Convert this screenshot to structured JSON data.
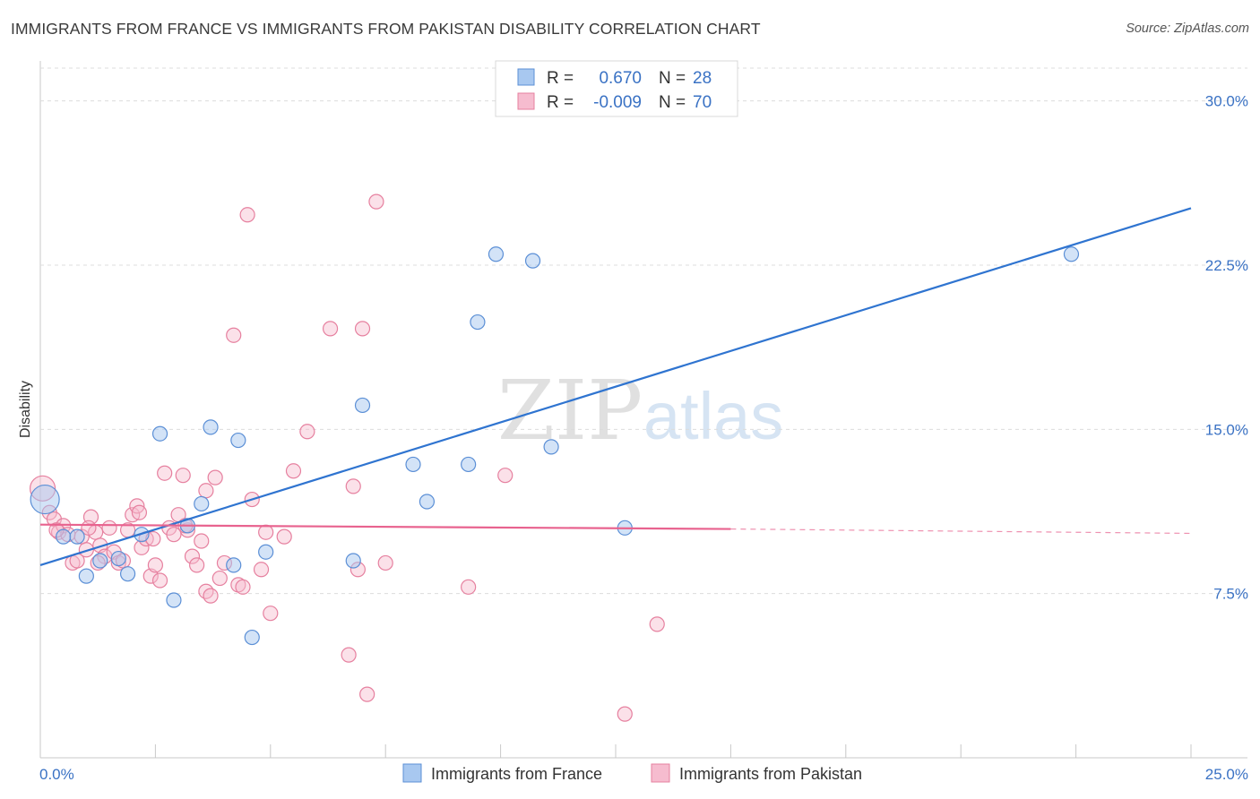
{
  "title": "IMMIGRANTS FROM FRANCE VS IMMIGRANTS FROM PAKISTAN DISABILITY CORRELATION CHART",
  "source": "Source: ZipAtlas.com",
  "watermark": {
    "zip": "ZIP",
    "atlas": "atlas"
  },
  "colors": {
    "france_fill": "#a8c8f0",
    "france_stroke": "#5b8fd6",
    "france_line": "#2f74d0",
    "pakistan_fill": "#f6bccf",
    "pakistan_stroke": "#e6809f",
    "pakistan_line": "#e8638f",
    "tick_text": "#3a72c4"
  },
  "legend": {
    "france": {
      "r_label": "R =",
      "r_value": "0.670",
      "n_label": "N =",
      "n_value": "28"
    },
    "pakistan": {
      "r_label": "R =",
      "r_value": "-0.009",
      "n_label": "N =",
      "n_value": "70"
    }
  },
  "chart_data": {
    "type": "scatter",
    "title": "IMMIGRANTS FROM FRANCE VS IMMIGRANTS FROM PAKISTAN DISABILITY CORRELATION CHART",
    "xlabel": "",
    "ylabel": "Disability",
    "xlim": [
      0,
      25
    ],
    "ylim": [
      0,
      31.5
    ],
    "x_tick_labels": [
      "0.0%",
      "25.0%"
    ],
    "y_ticks": [
      7.5,
      15.0,
      22.5,
      30.0
    ],
    "y_tick_labels": [
      "7.5%",
      "15.0%",
      "22.5%",
      "30.0%"
    ],
    "grid": true,
    "series": [
      {
        "name": "Immigrants from France",
        "r": 0.67,
        "n": 28,
        "trend": {
          "x": [
            0,
            25
          ],
          "y": [
            8.8,
            25.1
          ]
        },
        "points": [
          {
            "x": 0.1,
            "y": 11.8,
            "big": true
          },
          {
            "x": 0.5,
            "y": 10.1
          },
          {
            "x": 0.8,
            "y": 10.1
          },
          {
            "x": 1.0,
            "y": 8.3
          },
          {
            "x": 1.3,
            "y": 9.0
          },
          {
            "x": 1.7,
            "y": 9.1
          },
          {
            "x": 1.9,
            "y": 8.4
          },
          {
            "x": 2.2,
            "y": 10.2
          },
          {
            "x": 2.6,
            "y": 14.8
          },
          {
            "x": 2.9,
            "y": 7.2
          },
          {
            "x": 3.2,
            "y": 10.6
          },
          {
            "x": 3.5,
            "y": 11.6
          },
          {
            "x": 3.7,
            "y": 15.1
          },
          {
            "x": 4.2,
            "y": 8.8
          },
          {
            "x": 4.3,
            "y": 14.5
          },
          {
            "x": 4.6,
            "y": 5.5
          },
          {
            "x": 4.9,
            "y": 9.4
          },
          {
            "x": 6.8,
            "y": 9.0
          },
          {
            "x": 7.0,
            "y": 16.1
          },
          {
            "x": 8.1,
            "y": 13.4
          },
          {
            "x": 8.4,
            "y": 11.7
          },
          {
            "x": 9.3,
            "y": 13.4
          },
          {
            "x": 9.5,
            "y": 19.9
          },
          {
            "x": 9.9,
            "y": 23.0
          },
          {
            "x": 10.7,
            "y": 22.7
          },
          {
            "x": 11.1,
            "y": 14.2
          },
          {
            "x": 12.7,
            "y": 10.5
          },
          {
            "x": 22.4,
            "y": 23.0
          }
        ]
      },
      {
        "name": "Immigrants from Pakistan",
        "r": -0.009,
        "n": 70,
        "trend": {
          "x": [
            0,
            15
          ],
          "y": [
            10.65,
            10.45
          ]
        },
        "trend_dashed": {
          "x": [
            15,
            25
          ],
          "y": [
            10.45,
            10.25
          ]
        },
        "points": [
          {
            "x": 0.05,
            "y": 12.3,
            "big": true
          },
          {
            "x": 0.2,
            "y": 11.2
          },
          {
            "x": 0.3,
            "y": 10.9
          },
          {
            "x": 0.4,
            "y": 10.3
          },
          {
            "x": 0.5,
            "y": 10.6
          },
          {
            "x": 0.6,
            "y": 10.2
          },
          {
            "x": 0.7,
            "y": 8.9
          },
          {
            "x": 0.9,
            "y": 10.1
          },
          {
            "x": 1.0,
            "y": 9.5
          },
          {
            "x": 1.1,
            "y": 11.0
          },
          {
            "x": 1.2,
            "y": 10.3
          },
          {
            "x": 1.3,
            "y": 9.7
          },
          {
            "x": 1.4,
            "y": 9.2
          },
          {
            "x": 1.5,
            "y": 10.5
          },
          {
            "x": 1.6,
            "y": 9.4
          },
          {
            "x": 1.7,
            "y": 8.9
          },
          {
            "x": 1.8,
            "y": 9.0
          },
          {
            "x": 2.0,
            "y": 11.1
          },
          {
            "x": 2.1,
            "y": 11.5
          },
          {
            "x": 2.2,
            "y": 9.6
          },
          {
            "x": 2.3,
            "y": 10.0
          },
          {
            "x": 2.4,
            "y": 8.3
          },
          {
            "x": 2.5,
            "y": 8.8
          },
          {
            "x": 2.6,
            "y": 8.1
          },
          {
            "x": 2.7,
            "y": 13.0
          },
          {
            "x": 2.8,
            "y": 10.5
          },
          {
            "x": 2.9,
            "y": 10.2
          },
          {
            "x": 3.0,
            "y": 11.1
          },
          {
            "x": 3.1,
            "y": 12.9
          },
          {
            "x": 3.2,
            "y": 10.4
          },
          {
            "x": 3.3,
            "y": 9.2
          },
          {
            "x": 3.4,
            "y": 8.8
          },
          {
            "x": 3.5,
            "y": 9.9
          },
          {
            "x": 3.6,
            "y": 7.6
          },
          {
            "x": 3.7,
            "y": 7.4
          },
          {
            "x": 3.8,
            "y": 12.8
          },
          {
            "x": 3.9,
            "y": 8.2
          },
          {
            "x": 4.0,
            "y": 8.9
          },
          {
            "x": 4.2,
            "y": 19.3
          },
          {
            "x": 4.3,
            "y": 7.9
          },
          {
            "x": 4.4,
            "y": 7.8
          },
          {
            "x": 4.5,
            "y": 24.8
          },
          {
            "x": 4.6,
            "y": 11.8
          },
          {
            "x": 4.8,
            "y": 8.6
          },
          {
            "x": 4.9,
            "y": 10.3
          },
          {
            "x": 5.0,
            "y": 6.6
          },
          {
            "x": 5.3,
            "y": 10.1
          },
          {
            "x": 5.5,
            "y": 13.1
          },
          {
            "x": 5.8,
            "y": 14.9
          },
          {
            "x": 6.3,
            "y": 19.6
          },
          {
            "x": 6.7,
            "y": 4.7
          },
          {
            "x": 6.8,
            "y": 12.4
          },
          {
            "x": 6.9,
            "y": 8.6
          },
          {
            "x": 7.0,
            "y": 19.6
          },
          {
            "x": 7.1,
            "y": 2.9
          },
          {
            "x": 7.3,
            "y": 25.4
          },
          {
            "x": 7.5,
            "y": 8.9
          },
          {
            "x": 9.3,
            "y": 7.8
          },
          {
            "x": 10.1,
            "y": 12.9
          },
          {
            "x": 12.7,
            "y": 2.0
          },
          {
            "x": 13.4,
            "y": 6.1
          },
          {
            "x": 0.35,
            "y": 10.4
          },
          {
            "x": 1.25,
            "y": 8.9
          },
          {
            "x": 1.9,
            "y": 10.4
          },
          {
            "x": 2.45,
            "y": 10.0
          },
          {
            "x": 3.15,
            "y": 10.6
          },
          {
            "x": 3.6,
            "y": 12.2
          },
          {
            "x": 1.05,
            "y": 10.5
          },
          {
            "x": 0.8,
            "y": 9.0
          },
          {
            "x": 2.15,
            "y": 11.2
          }
        ]
      }
    ]
  },
  "bottom_legend": {
    "france_label": "Immigrants from France",
    "pakistan_label": "Immigrants from Pakistan"
  }
}
